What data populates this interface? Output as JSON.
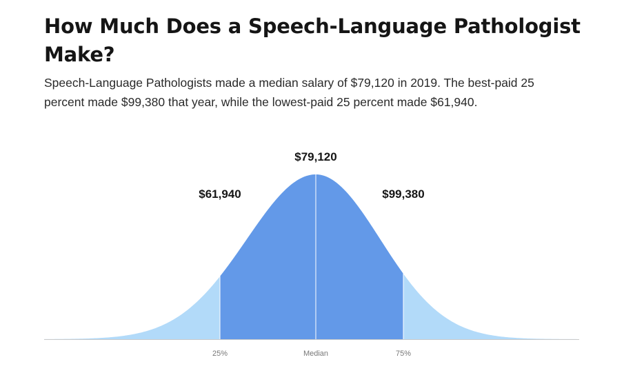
{
  "header": {
    "title": "How Much Does a Speech-Language Pathologist Make?",
    "subtitle": "Speech-Language Pathologists made a median salary of $79,120 in 2019. The best-paid 25 percent made $99,380 that year, while the lowest-paid 25 percent made $61,940."
  },
  "chart_data": {
    "type": "area",
    "title": "",
    "xlabel": "",
    "ylabel": "",
    "legend": "none",
    "grid": false,
    "percentiles": [
      {
        "tick": "25%",
        "label": "$61,940",
        "value": 61940,
        "percentile": 25
      },
      {
        "tick": "Median",
        "label": "$79,120",
        "value": 79120,
        "percentile": 50
      },
      {
        "tick": "75%",
        "label": "$99,380",
        "value": 99380,
        "percentile": 75
      }
    ],
    "colors": {
      "middle_band": "#6399e8",
      "outer_tails": "#b2daf9",
      "marker_line": "#ffffff",
      "baseline": "#c9c9c9"
    }
  }
}
